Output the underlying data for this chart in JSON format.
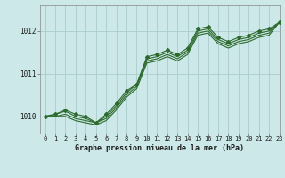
{
  "title": "Graphe pression niveau de la mer (hPa)",
  "bg_color": "#cce8e8",
  "grid_color": "#aacccc",
  "line_color": "#2d6a2d",
  "marker_color": "#2d6a2d",
  "xlim": [
    -0.5,
    23
  ],
  "ylim": [
    1009.6,
    1012.6
  ],
  "yticks": [
    1010,
    1011,
    1012
  ],
  "xticks": [
    0,
    1,
    2,
    3,
    4,
    5,
    6,
    7,
    8,
    9,
    10,
    11,
    12,
    13,
    14,
    15,
    16,
    17,
    18,
    19,
    20,
    21,
    22,
    23
  ],
  "series": [
    [
      1010.0,
      1010.05,
      1010.15,
      1010.05,
      1010.0,
      1009.85,
      1010.05,
      1010.3,
      1010.6,
      1010.75,
      1011.4,
      1011.45,
      1011.55,
      1011.45,
      1011.6,
      1012.05,
      1012.1,
      1011.85,
      1011.75,
      1011.85,
      1011.9,
      1012.0,
      1012.05,
      1012.2
    ],
    [
      1010.0,
      1010.05,
      1010.12,
      1010.0,
      1009.95,
      1009.85,
      1010.0,
      1010.25,
      1010.55,
      1010.75,
      1011.35,
      1011.4,
      1011.5,
      1011.4,
      1011.55,
      1012.0,
      1012.05,
      1011.8,
      1011.7,
      1011.8,
      1011.85,
      1011.95,
      1012.0,
      1012.2
    ],
    [
      1010.0,
      1010.0,
      1010.05,
      1009.95,
      1009.9,
      1009.85,
      1009.95,
      1010.2,
      1010.5,
      1010.7,
      1011.3,
      1011.35,
      1011.45,
      1011.35,
      1011.5,
      1011.95,
      1012.0,
      1011.75,
      1011.65,
      1011.75,
      1011.8,
      1011.9,
      1011.95,
      1012.2
    ],
    [
      1010.0,
      1010.0,
      1010.0,
      1009.9,
      1009.85,
      1009.8,
      1009.9,
      1010.15,
      1010.45,
      1010.65,
      1011.25,
      1011.3,
      1011.4,
      1011.3,
      1011.45,
      1011.9,
      1011.95,
      1011.7,
      1011.6,
      1011.7,
      1011.75,
      1011.85,
      1011.9,
      1012.2
    ]
  ],
  "marker_series": 0
}
